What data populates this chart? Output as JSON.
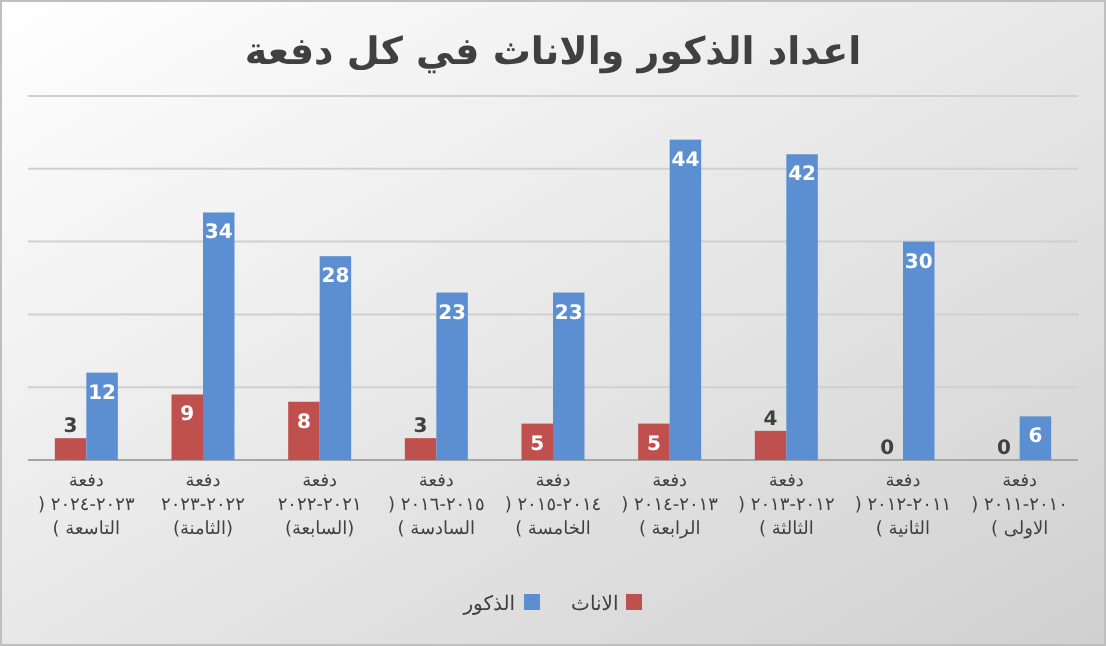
{
  "chart_data": {
    "type": "bar",
    "title": "اعداد الذكور والاناث في كل دفعة",
    "categories": [
      "دفعة ٢٠٢٣-٢٠٢٤ ( التاسعة )",
      "دفعة ٢٠٢٢-٢٠٢٣ (الثامنة)",
      "دفعة ٢٠٢١-٢٠٢٢ (السابعة)",
      "دفعة ٢٠١٥-٢٠١٦ ( السادسة )",
      "دفعة ٢٠١٤-٢٠١٥ ( الخامسة )",
      "دفعة ٢٠١٣-٢٠١٤ ( الرابعة )",
      "دفعة ٢٠١٢-٢٠١٣ ( الثالثة )",
      "دفعة ٢٠١١-٢٠١٢ ( الثانية )",
      "دفعة ٢٠١٠-٢٠١١ ( الاولى )"
    ],
    "series": [
      {
        "name": "الاناث",
        "color": "#c0504d",
        "values": [
          3,
          9,
          8,
          3,
          5,
          5,
          4,
          0,
          0
        ]
      },
      {
        "name": "الذكور",
        "color": "#5b8fd1",
        "values": [
          12,
          34,
          28,
          23,
          23,
          44,
          42,
          30,
          6
        ]
      }
    ],
    "ylim": [
      0,
      50
    ],
    "yticks": [
      {
        "value": 0,
        "label": null
      },
      {
        "value": 10,
        "label": null
      },
      {
        "value": 20,
        "label": null
      },
      {
        "value": 30,
        "label": null
      },
      {
        "value": 40,
        "label": null
      },
      {
        "value": 50,
        "label": null
      }
    ],
    "tick_labels": "x",
    "grid": "y",
    "data_labels": true,
    "legend": "bottom"
  }
}
